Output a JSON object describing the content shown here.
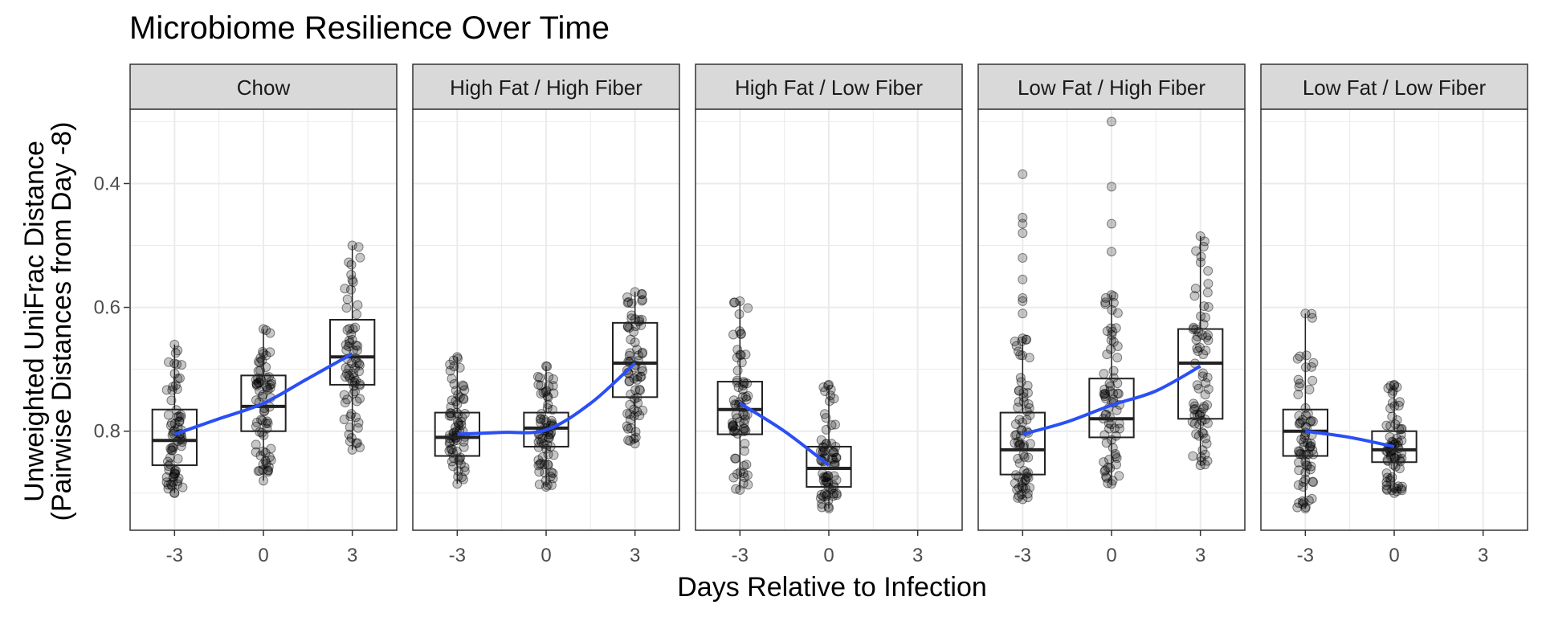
{
  "chart_data": {
    "type": "scatter",
    "subtype": "faceted boxplot with jittered points and smoothed trend line",
    "title": "Microbiome Resilience Over Time",
    "xlabel": "Days Relative to Infection",
    "ylabel_lines": [
      "Unweighted UniFrac Distance",
      "(Pairwise Distances from Day -8)"
    ],
    "y_reversed": true,
    "ylim": [
      0.28,
      0.96
    ],
    "y_ticks": [
      0.4,
      0.6,
      0.8
    ],
    "x_ticks": [
      -3,
      0,
      3
    ],
    "grid": true,
    "colors": {
      "points": "#000000",
      "trend": "#2a4ff5",
      "strip_bg": "#d9d9d9",
      "grid": "#ebebeb"
    },
    "facets": [
      {
        "name": "Chow",
        "boxes": [
          {
            "x": -3,
            "q1": 0.765,
            "median": 0.815,
            "q3": 0.855,
            "min": 0.66,
            "max": 0.9
          },
          {
            "x": 0,
            "q1": 0.71,
            "median": 0.76,
            "q3": 0.8,
            "min": 0.635,
            "max": 0.88
          },
          {
            "x": 3,
            "q1": 0.62,
            "median": 0.68,
            "q3": 0.725,
            "min": 0.5,
            "max": 0.83
          }
        ],
        "trend": [
          [
            -3,
            0.805
          ],
          [
            -1.5,
            0.78
          ],
          [
            0,
            0.755
          ],
          [
            1.5,
            0.715
          ],
          [
            3,
            0.675
          ]
        ],
        "outliers": []
      },
      {
        "name": "High Fat / High Fiber",
        "boxes": [
          {
            "x": -3,
            "q1": 0.77,
            "median": 0.81,
            "q3": 0.84,
            "min": 0.68,
            "max": 0.885
          },
          {
            "x": 0,
            "q1": 0.77,
            "median": 0.795,
            "q3": 0.825,
            "min": 0.695,
            "max": 0.89
          },
          {
            "x": 3,
            "q1": 0.625,
            "median": 0.69,
            "q3": 0.745,
            "min": 0.575,
            "max": 0.82
          }
        ],
        "trend": [
          [
            -3,
            0.805
          ],
          [
            -1.5,
            0.802
          ],
          [
            0,
            0.798
          ],
          [
            1.5,
            0.755
          ],
          [
            3,
            0.69
          ]
        ],
        "outliers": []
      },
      {
        "name": "High Fat / Low Fiber",
        "boxes": [
          {
            "x": -3,
            "q1": 0.72,
            "median": 0.765,
            "q3": 0.805,
            "min": 0.59,
            "max": 0.895
          },
          {
            "x": 0,
            "q1": 0.825,
            "median": 0.86,
            "q3": 0.89,
            "min": 0.725,
            "max": 0.925
          }
        ],
        "trend": [
          [
            -3,
            0.755
          ],
          [
            -1.5,
            0.8
          ],
          [
            0,
            0.855
          ]
        ],
        "outliers": []
      },
      {
        "name": "Low Fat / High Fiber",
        "boxes": [
          {
            "x": -3,
            "q1": 0.77,
            "median": 0.83,
            "q3": 0.87,
            "min": 0.65,
            "max": 0.91
          },
          {
            "x": 0,
            "q1": 0.715,
            "median": 0.78,
            "q3": 0.81,
            "min": 0.58,
            "max": 0.885
          },
          {
            "x": 3,
            "q1": 0.635,
            "median": 0.69,
            "q3": 0.78,
            "min": 0.485,
            "max": 0.855
          }
        ],
        "trend": [
          [
            -3,
            0.805
          ],
          [
            -1.5,
            0.785
          ],
          [
            0,
            0.758
          ],
          [
            1.5,
            0.735
          ],
          [
            3,
            0.695
          ]
        ],
        "outliers": [
          {
            "x": -3,
            "y": 0.385
          },
          {
            "x": -3,
            "y": 0.455
          },
          {
            "x": -3,
            "y": 0.465
          },
          {
            "x": -3,
            "y": 0.48
          },
          {
            "x": -3,
            "y": 0.52
          },
          {
            "x": -3,
            "y": 0.555
          },
          {
            "x": -3,
            "y": 0.585
          },
          {
            "x": -3,
            "y": 0.59
          },
          {
            "x": -3,
            "y": 0.61
          },
          {
            "x": 0,
            "y": 0.3
          },
          {
            "x": 0,
            "y": 0.405
          },
          {
            "x": 0,
            "y": 0.465
          },
          {
            "x": 0,
            "y": 0.51
          }
        ]
      },
      {
        "name": "Low Fat / Low Fiber",
        "boxes": [
          {
            "x": -3,
            "q1": 0.765,
            "median": 0.8,
            "q3": 0.84,
            "min": 0.61,
            "max": 0.925
          },
          {
            "x": 0,
            "q1": 0.8,
            "median": 0.83,
            "q3": 0.85,
            "min": 0.725,
            "max": 0.9
          }
        ],
        "trend": [
          [
            -3,
            0.8
          ],
          [
            -1.5,
            0.81
          ],
          [
            0,
            0.825
          ]
        ],
        "outliers": []
      }
    ]
  }
}
